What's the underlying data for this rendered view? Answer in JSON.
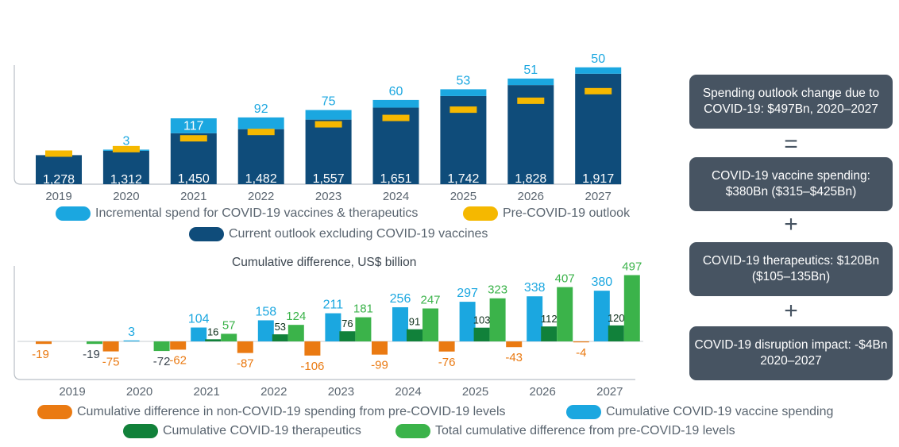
{
  "colors": {
    "incremental": "#1ba7e0",
    "pre_covid": "#f5b800",
    "current": "#0f4c7a",
    "non_covid_diff": "#ea7a12",
    "vaccine_cum": "#1ba7e0",
    "therapeutics_cum": "#11813a",
    "total_cum": "#3bb34a",
    "box_bg": "#475462"
  },
  "chart_data": [
    {
      "type": "bar",
      "subtype": "stacked",
      "title": "",
      "categories": [
        "2019",
        "2020",
        "2021",
        "2022",
        "2023",
        "2024",
        "2025",
        "2026",
        "2027"
      ],
      "series": [
        {
          "name": "Current outlook excluding COVID-19 vaccines",
          "values": [
            1278,
            1312,
            1450,
            1482,
            1557,
            1651,
            1742,
            1828,
            1917
          ]
        },
        {
          "name": "Incremental spend for COVID-19 vaccines & therapeutics",
          "values": [
            null,
            3,
            117,
            92,
            75,
            60,
            53,
            51,
            50
          ]
        },
        {
          "name": "Pre-COVID-19 outlook",
          "values": [
            1290,
            1325,
            1410,
            1460,
            1520,
            1570,
            1635,
            1705,
            1780
          ]
        }
      ],
      "labels_bottom": [
        "1,278",
        "1,312",
        "1,450",
        "1,482",
        "1,557",
        "1,651",
        "1,742",
        "1,828",
        "1,917"
      ],
      "labels_top": [
        "",
        "3",
        "117",
        "92",
        "75",
        "60",
        "53",
        "51",
        "50"
      ],
      "ylim": [
        1050,
        2000
      ],
      "legend": [
        "Incremental spend for COVID-19 vaccines & therapeutics",
        "Pre-COVID-19 outlook",
        "Current outlook excluding COVID-19 vaccines"
      ]
    },
    {
      "type": "bar",
      "title": "Cumulative difference, US$ billion",
      "categories": [
        "2019",
        "2020",
        "2021",
        "2022",
        "2023",
        "2024",
        "2025",
        "2026",
        "2027"
      ],
      "series": [
        {
          "name": "Cumulative difference in non-COVID-19 spending from pre-COVID-19 levels",
          "values": [
            -19,
            -75,
            -62,
            -87,
            -106,
            -99,
            -76,
            -43,
            -4
          ]
        },
        {
          "name": "Cumulative COVID-19 vaccine spending",
          "values": [
            null,
            3,
            104,
            158,
            211,
            256,
            297,
            338,
            380
          ]
        },
        {
          "name": "Cumulative COVID-19 therapeutics",
          "values": [
            null,
            null,
            16,
            53,
            76,
            91,
            103,
            112,
            120
          ]
        },
        {
          "name": "Total cumulative difference from pre-COVID-19 levels",
          "values": [
            -19,
            -72,
            57,
            124,
            181,
            247,
            323,
            407,
            497
          ]
        }
      ],
      "label_texts": {
        "non_covid": [
          "-19",
          "-75",
          "-62",
          "-87",
          "-106",
          "-99",
          "-76",
          "-43",
          "-4"
        ],
        "vaccine": [
          "",
          "3",
          "104",
          "158",
          "211",
          "256",
          "297",
          "338",
          "380"
        ],
        "therapeutics": [
          "",
          "",
          "16",
          "53",
          "76",
          "91",
          "103",
          "112",
          "120"
        ],
        "total": [
          "-19",
          "-72",
          "57",
          "124",
          "181",
          "247",
          "323",
          "407",
          "497"
        ]
      },
      "ylim": [
        -130,
        520
      ],
      "legend": [
        "Cumulative difference in non-COVID-19 spending from pre-COVID-19 levels",
        "Cumulative COVID-19 vaccine spending",
        "Cumulative COVID-19 therapeutics",
        "Total cumulative difference from pre-COVID-19 levels"
      ]
    }
  ],
  "side_panel": {
    "box1": "Spending outlook change due to COVID-19: $497Bn, 2020–2027",
    "op1": "=",
    "box2": "COVID-19 vaccine spending: $380Bn ($315–$425Bn)",
    "op2": "+",
    "box3": "COVID-19 therapeutics: $120Bn ($105–135Bn)",
    "op3": "+",
    "box4": "COVID-19 disruption impact: -$4Bn 2020–2027"
  }
}
